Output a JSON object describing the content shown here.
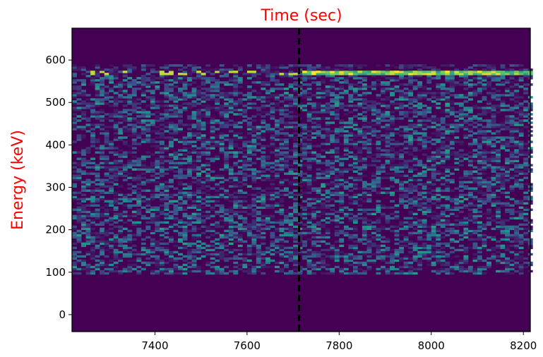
{
  "chart_data": {
    "type": "heatmap",
    "title": "Time (sec)",
    "xlabel": "",
    "ylabel": "Energy (keV)",
    "title_color": "#ff0000",
    "ylabel_color": "#ff0000",
    "xlim": [
      7220,
      8215
    ],
    "ylim": [
      -40,
      675
    ],
    "xticks": [
      7400,
      7600,
      7800,
      8000,
      8200
    ],
    "yticks": [
      0,
      100,
      200,
      300,
      400,
      500,
      600
    ],
    "grid": false,
    "colormap": "viridis",
    "background_color": "#440154",
    "data_region": {
      "x_range": [
        7220,
        8215
      ],
      "y_range": [
        95,
        590
      ]
    },
    "bright_line": {
      "energy_keV": 570,
      "note": "dense bright band, strongest after the marker"
    },
    "vertical_marker": {
      "x": 7713,
      "style": "dashed",
      "color": "#000000"
    }
  }
}
